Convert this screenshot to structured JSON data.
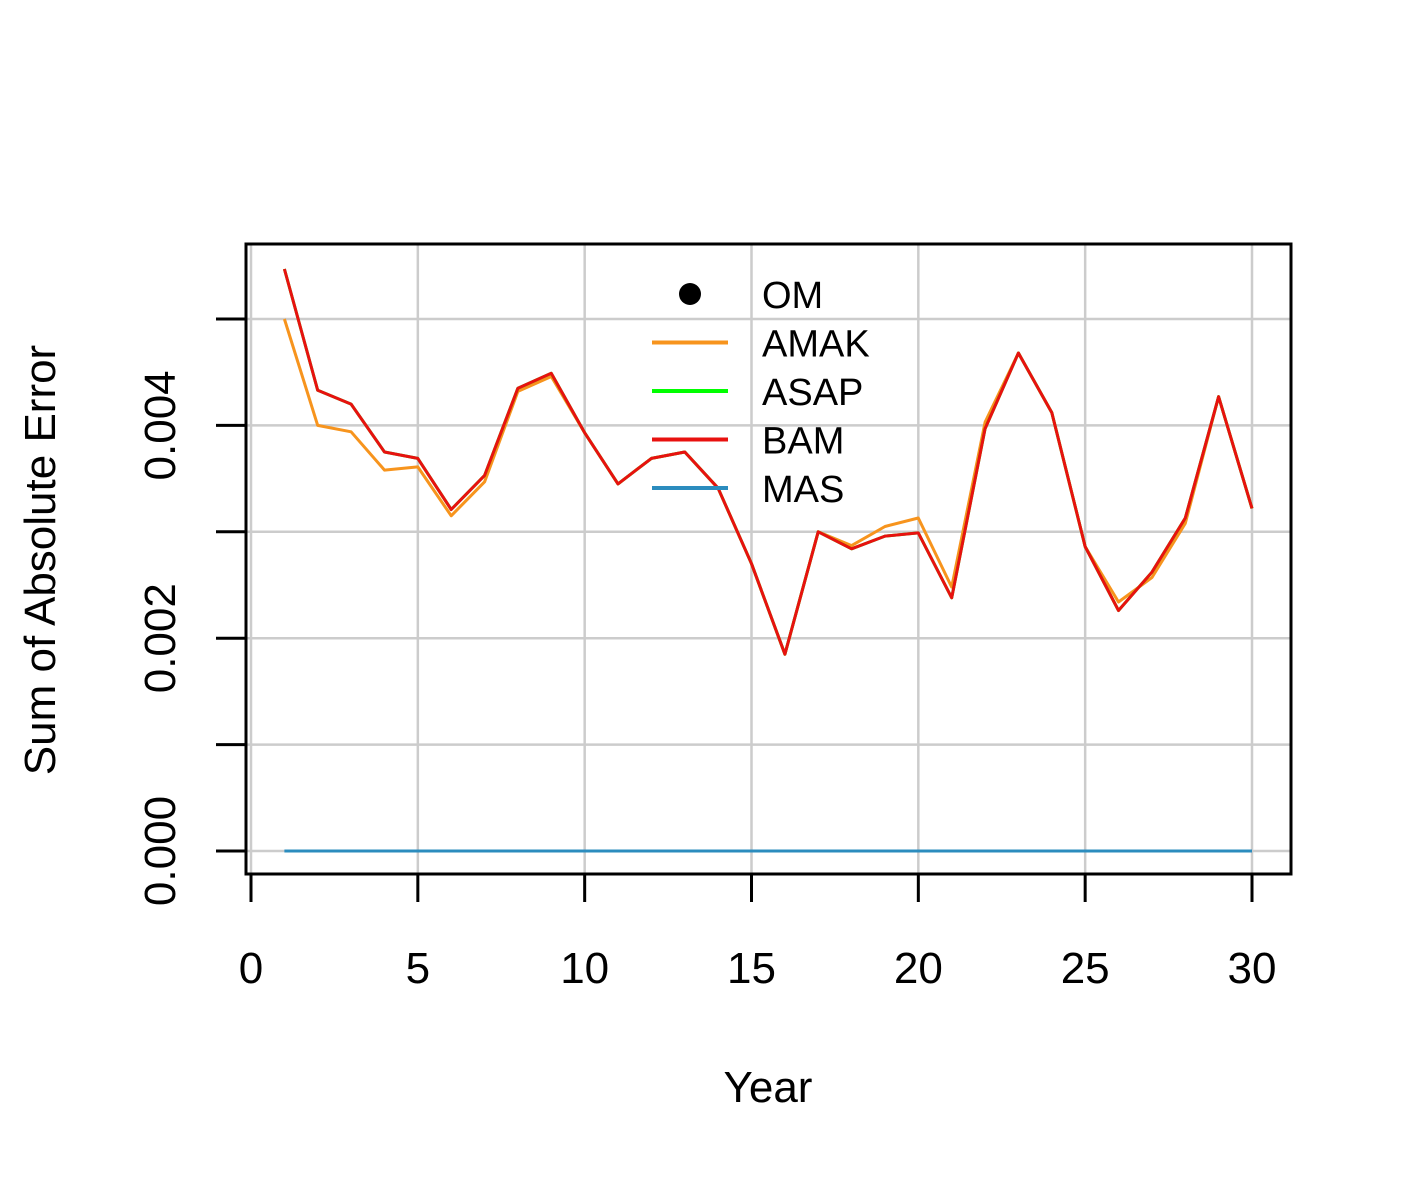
{
  "chart_data": {
    "type": "line",
    "title": "",
    "xlabel": "Year",
    "ylabel": "Sum of Absolute Error",
    "xlim": [
      0,
      30
    ],
    "ylim": [
      0,
      0.005
    ],
    "grid": true,
    "legend_position": "top-center",
    "x_ticks": [
      0,
      5,
      10,
      15,
      20,
      25,
      30
    ],
    "x_tick_labels": [
      "0",
      "5",
      "10",
      "15",
      "20",
      "25",
      "30"
    ],
    "y_ticks": [
      0,
      0.001,
      0.002,
      0.003,
      0.004,
      0.005
    ],
    "y_tick_labels": [
      "0.000",
      "",
      "0.002",
      "",
      "0.004",
      ""
    ],
    "x": [
      1,
      2,
      3,
      4,
      5,
      6,
      7,
      8,
      9,
      10,
      11,
      12,
      13,
      14,
      15,
      16,
      17,
      18,
      19,
      20,
      21,
      22,
      23,
      24,
      25,
      26,
      27,
      28,
      29,
      30
    ],
    "legend": [
      {
        "name": "OM",
        "style": "point",
        "color": "#000000"
      },
      {
        "name": "AMAK",
        "style": "line",
        "color": "#f7941d"
      },
      {
        "name": "ASAP",
        "style": "line",
        "color": "#00ff00"
      },
      {
        "name": "BAM",
        "style": "line",
        "color": "#e8110f"
      },
      {
        "name": "MAS",
        "style": "line",
        "color": "#2b8cbe"
      }
    ],
    "series": [
      {
        "name": "AMAK",
        "color": "#f7941d",
        "values": [
          0.005,
          0.004,
          0.00394,
          0.00358,
          0.00361,
          0.00315,
          0.00347,
          0.00432,
          0.00446,
          0.00393,
          0.00345,
          0.00369,
          0.00375,
          0.00341,
          0.0027,
          0.00185,
          0.003,
          0.00287,
          0.00305,
          0.00313,
          0.00248,
          0.00403,
          0.00468,
          0.00412,
          0.00286,
          0.00234,
          0.00257,
          0.00308,
          0.00427,
          0.00322
        ]
      },
      {
        "name": "ASAP",
        "color": "#00ff00",
        "values": [
          0.00547,
          0.00433,
          0.0042,
          0.00375,
          0.00369,
          0.00321,
          0.00353,
          0.00435,
          0.00449,
          0.00393,
          0.00345,
          0.00369,
          0.00375,
          0.00341,
          0.0027,
          0.00185,
          0.003,
          0.00284,
          0.00296,
          0.00299,
          0.00238,
          0.00397,
          0.00468,
          0.00412,
          0.00286,
          0.00226,
          0.00262,
          0.00313,
          0.00427,
          0.00322
        ]
      },
      {
        "name": "BAM",
        "color": "#e8110f",
        "values": [
          0.00547,
          0.00433,
          0.0042,
          0.00375,
          0.00369,
          0.00321,
          0.00353,
          0.00435,
          0.00449,
          0.00393,
          0.00345,
          0.00369,
          0.00375,
          0.00341,
          0.0027,
          0.00185,
          0.003,
          0.00284,
          0.00296,
          0.00299,
          0.00238,
          0.00397,
          0.00468,
          0.00412,
          0.00286,
          0.00226,
          0.00262,
          0.00313,
          0.00427,
          0.00322
        ]
      },
      {
        "name": "MAS",
        "color": "#2b8cbe",
        "values": [
          0,
          0,
          0,
          0,
          0,
          0,
          0,
          0,
          0,
          0,
          0,
          0,
          0,
          0,
          0,
          0,
          0,
          0,
          0,
          0,
          0,
          0,
          0,
          0,
          0,
          0,
          0,
          0,
          0,
          0
        ]
      }
    ]
  }
}
